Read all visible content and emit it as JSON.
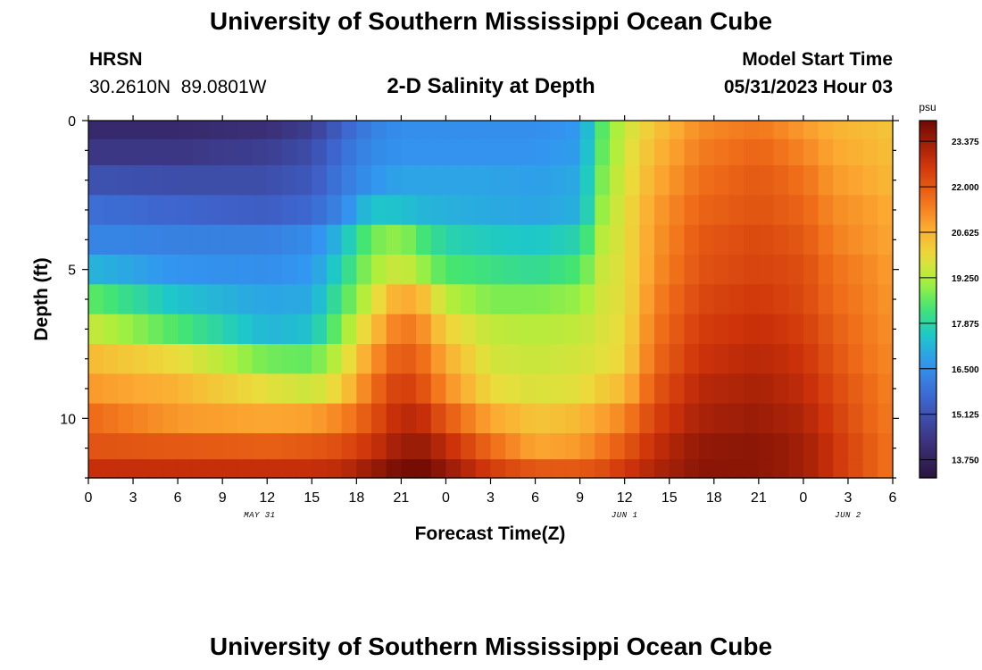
{
  "header": {
    "title_top": "University of Southern Mississippi Ocean Cube",
    "title_bottom": "University of Southern Mississippi Ocean Cube",
    "station": "HRSN",
    "coordinates": "30.2610N  89.0801W",
    "plot_title": "2-D Salinity at Depth",
    "model_start_label": "Model Start Time",
    "model_start_value": "05/31/2023 Hour 03"
  },
  "chart_data": {
    "type": "heatmap",
    "title": "2-D Salinity at Depth",
    "xlabel": "Forecast Time(Z)",
    "ylabel": "Depth (ft)",
    "units": "psu",
    "x_hours": [
      0,
      3,
      6,
      9,
      12,
      15,
      18,
      21,
      24,
      27,
      30,
      33,
      36,
      39,
      42,
      45,
      48,
      51,
      54
    ],
    "x_tick_labels": [
      "0",
      "3",
      "6",
      "9",
      "12",
      "15",
      "18",
      "21",
      "0",
      "3",
      "6",
      "9",
      "12",
      "15",
      "18",
      "21",
      "0",
      "3",
      "6"
    ],
    "x_range_hours": [
      0,
      54
    ],
    "date_labels": [
      {
        "label": "MAY 31",
        "hour": 11.5
      },
      {
        "label": "JUN 1",
        "hour": 36
      },
      {
        "label": "JUN 2",
        "hour": 51
      }
    ],
    "y_range_ft": [
      0,
      12
    ],
    "y_tick_labels": [
      "0",
      "5",
      "10"
    ],
    "y_tick_values": [
      0,
      5,
      10
    ],
    "depth_levels_ft": [
      0.25,
      1,
      2,
      3,
      4,
      5,
      6,
      7,
      8,
      9,
      10,
      11,
      11.75
    ],
    "colorbar": {
      "range": [
        13.2,
        24.0
      ],
      "tick_values": [
        13.75,
        15.125,
        16.5,
        17.875,
        19.25,
        20.625,
        22.0,
        23.375
      ],
      "tick_labels": [
        "13.750",
        "15.125",
        "16.500",
        "17.875",
        "19.250",
        "20.625",
        "22.000",
        "23.375"
      ]
    },
    "salinity_keyframes": {
      "hours": [
        0,
        6,
        12,
        15,
        17,
        19,
        21,
        22.5,
        24,
        27,
        30,
        33,
        34.5,
        36,
        38,
        41,
        45,
        48,
        50,
        52,
        54
      ],
      "rows": [
        [
          14.0,
          14.0,
          14.2,
          14.6,
          15.5,
          16.2,
          16.5,
          16.5,
          16.5,
          16.5,
          16.5,
          16.7,
          18.5,
          19.5,
          20.3,
          21.2,
          21.5,
          21.0,
          20.6,
          20.5,
          20.3
        ],
        [
          14.4,
          14.4,
          14.6,
          15.0,
          15.8,
          16.4,
          16.6,
          16.6,
          16.6,
          16.6,
          16.6,
          16.8,
          18.6,
          19.6,
          20.5,
          21.4,
          21.8,
          21.3,
          20.8,
          20.6,
          20.4
        ],
        [
          15.1,
          15.0,
          15.0,
          15.3,
          16.0,
          16.6,
          16.9,
          16.9,
          16.9,
          16.9,
          16.8,
          17.0,
          18.8,
          19.7,
          20.7,
          21.6,
          22.0,
          21.6,
          21.0,
          20.8,
          20.5
        ],
        [
          15.8,
          15.6,
          15.4,
          15.7,
          16.3,
          17.5,
          17.4,
          17.2,
          17.1,
          17.0,
          16.9,
          17.1,
          19.0,
          19.8,
          20.9,
          21.8,
          22.1,
          21.8,
          21.2,
          21.0,
          20.7
        ],
        [
          16.3,
          16.2,
          16.2,
          16.4,
          17.3,
          18.7,
          19.0,
          18.3,
          17.8,
          17.6,
          17.5,
          17.8,
          19.3,
          19.8,
          21.0,
          22.0,
          22.3,
          22.0,
          21.4,
          21.1,
          20.8
        ],
        [
          17.2,
          16.6,
          16.5,
          16.7,
          17.8,
          19.1,
          19.6,
          19.0,
          18.4,
          18.2,
          18.0,
          18.4,
          19.5,
          19.8,
          21.1,
          22.1,
          22.4,
          22.2,
          21.6,
          21.3,
          20.9
        ],
        [
          18.6,
          17.4,
          16.9,
          17.0,
          18.3,
          19.6,
          20.9,
          20.4,
          19.3,
          18.8,
          18.8,
          19.0,
          19.6,
          19.8,
          21.3,
          22.3,
          22.6,
          22.3,
          21.7,
          21.4,
          21.0
        ],
        [
          19.5,
          18.4,
          17.2,
          17.4,
          18.9,
          20.3,
          21.6,
          21.1,
          20.1,
          19.4,
          19.3,
          19.4,
          19.7,
          19.9,
          21.5,
          22.5,
          22.8,
          22.5,
          21.9,
          21.5,
          21.1
        ],
        [
          20.5,
          19.9,
          18.7,
          18.6,
          19.5,
          21.0,
          22.1,
          21.6,
          20.7,
          19.6,
          19.5,
          19.6,
          19.8,
          20.0,
          21.7,
          22.7,
          23.0,
          22.7,
          22.1,
          21.6,
          21.2
        ],
        [
          21.0,
          20.6,
          19.8,
          19.5,
          20.1,
          21.6,
          22.6,
          22.1,
          21.2,
          19.9,
          19.7,
          19.8,
          20.2,
          20.5,
          22.0,
          23.0,
          23.2,
          22.9,
          22.3,
          21.8,
          21.3
        ],
        [
          21.7,
          21.0,
          20.8,
          20.9,
          21.3,
          22.1,
          23.0,
          22.8,
          22.0,
          20.8,
          20.3,
          20.5,
          20.9,
          21.3,
          22.4,
          23.2,
          23.4,
          23.1,
          22.5,
          21.9,
          21.4
        ],
        [
          22.1,
          22.0,
          21.9,
          22.0,
          22.2,
          22.7,
          23.4,
          23.4,
          22.9,
          21.7,
          20.8,
          21.0,
          21.5,
          22.0,
          22.8,
          23.5,
          23.6,
          23.3,
          22.7,
          22.1,
          21.5
        ],
        [
          22.8,
          22.8,
          22.8,
          22.8,
          22.9,
          23.4,
          23.9,
          23.9,
          23.5,
          22.5,
          22.0,
          22.0,
          22.2,
          22.6,
          23.1,
          23.6,
          23.6,
          23.3,
          22.7,
          22.1,
          21.5
        ]
      ]
    }
  }
}
